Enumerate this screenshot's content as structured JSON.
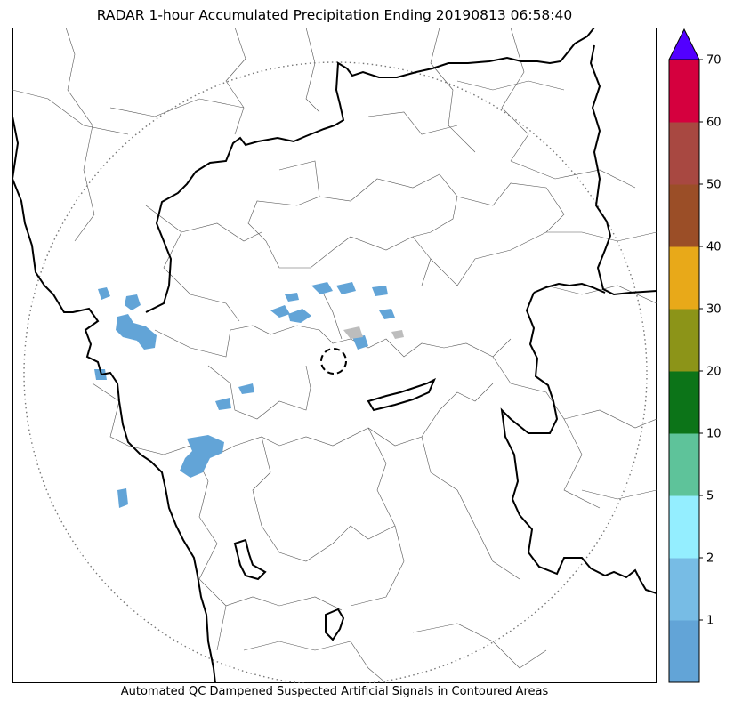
{
  "title": "RADAR 1-hour Accumulated Precipitation Ending 20190813 06:58:40",
  "footnote": "Automated QC Dampened Suspected Artificial Signals in Contoured Areas",
  "colorbar": {
    "extend": "max",
    "extend_color": "#5200ff",
    "levels": [
      {
        "label": "",
        "color": "#62a4d7"
      },
      {
        "label": "1",
        "color": "#77bce5"
      },
      {
        "label": "2",
        "color": "#94eeff"
      },
      {
        "label": "5",
        "color": "#5ec39a"
      },
      {
        "label": "10",
        "color": "#0c7418"
      },
      {
        "label": "20",
        "color": "#8c9418"
      },
      {
        "label": "30",
        "color": "#e8a919"
      },
      {
        "label": "40",
        "color": "#9b4e27"
      },
      {
        "label": "50",
        "color": "#a84841"
      },
      {
        "label": "60",
        "color": "#d5003e"
      },
      {
        "label": "70",
        "color": ""
      }
    ]
  },
  "map": {
    "radar_range_ring": "dotted circle",
    "radar_site_marker": "dashed circle",
    "precip_color": "#62a4d7",
    "state_border_color": "#000000",
    "district_border_color": "#555555"
  }
}
